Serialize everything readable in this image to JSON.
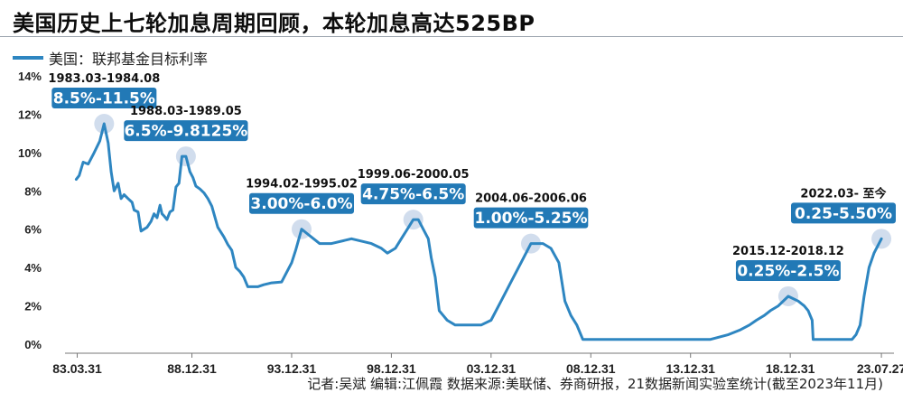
{
  "title": "美国历史上七轮加息周期回顾，本轮加息高达525BP",
  "legend": {
    "label": "美国：联邦基金目标利率",
    "color": "#2e86c1"
  },
  "footer": "记者:吴斌 编辑:江佩霞 数据来源:美联储、券商研报，21数据新闻实验室统计(截至2023年11月)",
  "colors": {
    "line": "#2e86c1",
    "label_box": "#2279b6",
    "marker": "#c9d7ea"
  },
  "chart_data": {
    "type": "line",
    "title": "美国历史上七轮加息周期回顾，本轮加息高达525BP",
    "xlabel": "",
    "ylabel": "",
    "ylim": [
      0,
      14
    ],
    "yticks": [
      "0%",
      "2%",
      "4%",
      "6%",
      "8%",
      "10%",
      "12%",
      "14%"
    ],
    "xlim": [
      1983.0,
      2024.2
    ],
    "xticks": [
      {
        "label": "83.03.31",
        "x": 1983.25
      },
      {
        "label": "88.12.31",
        "x": 1989.0
      },
      {
        "label": "93.12.31",
        "x": 1994.0
      },
      {
        "label": "98.12.31",
        "x": 1999.0
      },
      {
        "label": "03.12.31",
        "x": 2004.0
      },
      {
        "label": "08.12.31",
        "x": 2009.0
      },
      {
        "label": "13.12.31",
        "x": 2014.0
      },
      {
        "label": "18.12.31",
        "x": 2019.0
      },
      {
        "label": "23.07.27",
        "x": 2023.57
      }
    ],
    "grid": false,
    "legend_position": "top-left",
    "series": [
      {
        "name": "美国：联邦基金目标利率",
        "x": [
          1983.2,
          1983.35,
          1983.55,
          1983.8,
          1984.1,
          1984.38,
          1984.6,
          1984.8,
          1984.95,
          1985.1,
          1985.3,
          1985.45,
          1985.6,
          1985.8,
          1986.0,
          1986.1,
          1986.3,
          1986.45,
          1986.6,
          1986.75,
          1986.95,
          1987.1,
          1987.25,
          1987.4,
          1987.5,
          1987.6,
          1987.75,
          1987.9,
          1988.05,
          1988.2,
          1988.35,
          1988.5,
          1988.7,
          1988.9,
          1989.05,
          1989.2,
          1989.4,
          1989.6,
          1989.8,
          1990.0,
          1990.3,
          1990.6,
          1990.8,
          1991.0,
          1991.2,
          1991.4,
          1991.6,
          1991.8,
          1992.0,
          1992.3,
          1992.6,
          1993.0,
          1993.5,
          1994.0,
          1994.2,
          1994.5,
          1994.8,
          1995.1,
          1995.4,
          1995.7,
          1996.0,
          1997.0,
          1998.0,
          1998.5,
          1998.8,
          1999.2,
          1999.5,
          1999.8,
          2000.1,
          2000.35,
          2000.6,
          2000.85,
          2001.0,
          2001.2,
          2001.4,
          2001.6,
          2001.8,
          2002.2,
          2003.0,
          2003.5,
          2004.0,
          2004.5,
          2005.0,
          2005.5,
          2006.0,
          2006.6,
          2007.0,
          2007.4,
          2007.7,
          2008.0,
          2008.3,
          2008.6,
          2008.95,
          2015.0,
          2015.9,
          2016.5,
          2016.95,
          2017.3,
          2017.7,
          2018.0,
          2018.4,
          2018.9,
          2019.4,
          2019.7,
          2019.9,
          2020.1,
          2020.15,
          2022.1,
          2022.3,
          2022.5,
          2022.7,
          2022.95,
          2023.2,
          2023.57
        ],
        "values": [
          8.6,
          8.8,
          9.5,
          9.4,
          10.0,
          10.6,
          11.5,
          10.5,
          9.0,
          8.0,
          8.4,
          7.6,
          7.8,
          7.6,
          7.4,
          7.0,
          6.9,
          5.9,
          6.0,
          6.1,
          6.4,
          6.8,
          6.6,
          7.25,
          6.8,
          6.7,
          6.5,
          6.9,
          7.0,
          8.2,
          8.4,
          9.8,
          9.8,
          9.0,
          8.7,
          8.25,
          8.1,
          7.9,
          7.6,
          7.2,
          6.1,
          5.6,
          5.2,
          4.9,
          4.0,
          3.8,
          3.5,
          3.0,
          3.0,
          3.0,
          3.1,
          3.2,
          3.25,
          4.25,
          4.9,
          6.0,
          5.75,
          5.5,
          5.25,
          5.25,
          5.25,
          5.5,
          5.25,
          5.0,
          4.75,
          5.0,
          5.5,
          6.0,
          6.5,
          6.5,
          6.0,
          5.5,
          4.5,
          3.5,
          1.75,
          1.5,
          1.25,
          1.0,
          1.0,
          1.0,
          1.25,
          2.25,
          3.25,
          4.25,
          5.25,
          5.25,
          5.0,
          4.25,
          2.25,
          1.5,
          1.0,
          0.25,
          0.25,
          0.25,
          0.5,
          0.75,
          1.0,
          1.25,
          1.5,
          1.75,
          2.0,
          2.5,
          2.25,
          2.0,
          1.75,
          1.25,
          0.25,
          0.25,
          0.5,
          1.0,
          2.5,
          4.0,
          4.75,
          5.5
        ]
      }
    ],
    "annotations": [
      {
        "period": "1983.03-1984.08",
        "range": "8.5%-11.5%",
        "x": 1984.6,
        "y": 11.5
      },
      {
        "period": "1988.03-1989.05",
        "range": "6.5%-9.8125%",
        "x": 1988.7,
        "y": 9.8
      },
      {
        "period": "1994.02-1995.02",
        "range": "3.00%-6.0%",
        "x": 1994.5,
        "y": 6.0
      },
      {
        "period": "1999.06-2000.05",
        "range": "4.75%-6.5%",
        "x": 2000.1,
        "y": 6.5
      },
      {
        "period": "2004.06-2006.06",
        "range": "1.00%-5.25%",
        "x": 2006.0,
        "y": 5.25
      },
      {
        "period": "2015.12-2018.12",
        "range": "0.25%-2.5%",
        "x": 2018.9,
        "y": 2.5
      },
      {
        "period": "2022.03- 至今",
        "range": "0.25-5.50%",
        "x": 2023.57,
        "y": 5.5
      }
    ]
  }
}
